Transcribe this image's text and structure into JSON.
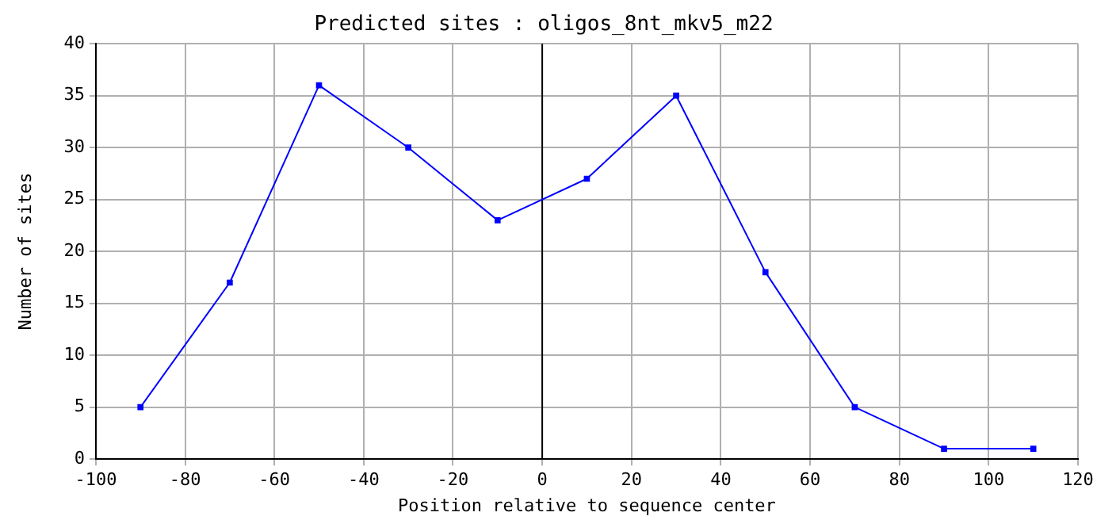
{
  "chart_data": {
    "type": "line",
    "title": "Predicted sites : oligos_8nt_mkv5_m22",
    "xlabel": "Position relative to sequence center",
    "ylabel": "Number of sites",
    "x": [
      -90,
      -70,
      -50,
      -30,
      -10,
      10,
      30,
      50,
      70,
      90,
      110
    ],
    "series": [
      {
        "color": "#0000ff",
        "values": [
          5,
          17,
          36,
          30,
          23,
          27,
          35,
          18,
          5,
          1,
          1
        ]
      }
    ],
    "xlim": [
      -100,
      120
    ],
    "xticks": [
      -100,
      -80,
      -60,
      -40,
      -20,
      0,
      20,
      40,
      60,
      80,
      100,
      120
    ],
    "ylim": [
      0,
      40
    ],
    "yticks": [
      0,
      5,
      10,
      15,
      20,
      25,
      30,
      35,
      40
    ],
    "grid": true,
    "legend": false,
    "marker": "square",
    "line_style": "solid",
    "ref_lines": [
      {
        "axis": "x",
        "value": 0,
        "color": "#000000"
      }
    ]
  }
}
